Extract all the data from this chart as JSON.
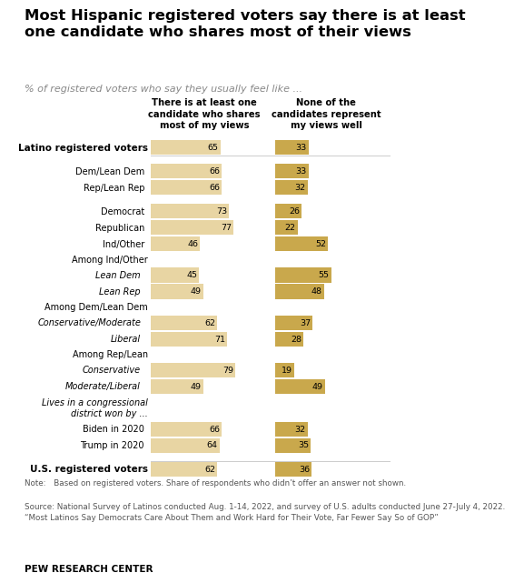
{
  "title": "Most Hispanic registered voters say there is at least\none candidate who shares most of their views",
  "subtitle": "% of registered voters who say they usually feel like ...",
  "col1_header": "There is at least one\ncandidate who shares\nmost of my views",
  "col2_header": "None of the\ncandidates represent\nmy views well",
  "rows": [
    {
      "label": "Latino registered voters",
      "v1": 65,
      "v2": 33,
      "bold": true,
      "italic": false,
      "indent": 0,
      "spacer": false,
      "header_only": false
    },
    {
      "label": "",
      "v1": null,
      "v2": null,
      "bold": false,
      "italic": false,
      "indent": 0,
      "spacer": true,
      "header_only": false
    },
    {
      "label": "Dem/Lean Dem",
      "v1": 66,
      "v2": 33,
      "bold": false,
      "italic": false,
      "indent": 1,
      "spacer": false,
      "header_only": false
    },
    {
      "label": "Rep/Lean Rep",
      "v1": 66,
      "v2": 32,
      "bold": false,
      "italic": false,
      "indent": 1,
      "spacer": false,
      "header_only": false
    },
    {
      "label": "",
      "v1": null,
      "v2": null,
      "bold": false,
      "italic": false,
      "indent": 0,
      "spacer": true,
      "header_only": false
    },
    {
      "label": "Democrat",
      "v1": 73,
      "v2": 26,
      "bold": false,
      "italic": false,
      "indent": 1,
      "spacer": false,
      "header_only": false
    },
    {
      "label": "Republican",
      "v1": 77,
      "v2": 22,
      "bold": false,
      "italic": false,
      "indent": 1,
      "spacer": false,
      "header_only": false
    },
    {
      "label": "Ind/Other",
      "v1": 46,
      "v2": 52,
      "bold": false,
      "italic": false,
      "indent": 1,
      "spacer": false,
      "header_only": false
    },
    {
      "label": "Among Ind/Other",
      "v1": null,
      "v2": null,
      "bold": false,
      "italic": false,
      "indent": 0,
      "spacer": false,
      "header_only": true
    },
    {
      "label": "Lean Dem",
      "v1": 45,
      "v2": 55,
      "bold": false,
      "italic": true,
      "indent": 2,
      "spacer": false,
      "header_only": false
    },
    {
      "label": "Lean Rep",
      "v1": 49,
      "v2": 48,
      "bold": false,
      "italic": true,
      "indent": 2,
      "spacer": false,
      "header_only": false
    },
    {
      "label": "Among Dem/Lean Dem",
      "v1": null,
      "v2": null,
      "bold": false,
      "italic": false,
      "indent": 0,
      "spacer": false,
      "header_only": true
    },
    {
      "label": "Conservative/Moderate",
      "v1": 62,
      "v2": 37,
      "bold": false,
      "italic": true,
      "indent": 2,
      "spacer": false,
      "header_only": false
    },
    {
      "label": "Liberal",
      "v1": 71,
      "v2": 28,
      "bold": false,
      "italic": true,
      "indent": 2,
      "spacer": false,
      "header_only": false
    },
    {
      "label": "Among Rep/Lean",
      "v1": null,
      "v2": null,
      "bold": false,
      "italic": false,
      "indent": 0,
      "spacer": false,
      "header_only": true
    },
    {
      "label": "Conservative",
      "v1": 79,
      "v2": 19,
      "bold": false,
      "italic": true,
      "indent": 2,
      "spacer": false,
      "header_only": false
    },
    {
      "label": "Moderate/Liberal",
      "v1": 49,
      "v2": 49,
      "bold": false,
      "italic": true,
      "indent": 2,
      "spacer": false,
      "header_only": false
    },
    {
      "label": "Lives in a congressional\ndistrict won by ...",
      "v1": null,
      "v2": null,
      "bold": false,
      "italic": true,
      "indent": 0,
      "spacer": false,
      "header_only": true
    },
    {
      "label": "Biden in 2020",
      "v1": 66,
      "v2": 32,
      "bold": false,
      "italic": false,
      "indent": 1,
      "spacer": false,
      "header_only": false
    },
    {
      "label": "Trump in 2020",
      "v1": 64,
      "v2": 35,
      "bold": false,
      "italic": false,
      "indent": 1,
      "spacer": false,
      "header_only": false
    },
    {
      "label": "",
      "v1": null,
      "v2": null,
      "bold": false,
      "italic": false,
      "indent": 0,
      "spacer": true,
      "header_only": false
    },
    {
      "label": "U.S. registered voters",
      "v1": 62,
      "v2": 36,
      "bold": true,
      "italic": false,
      "indent": 0,
      "spacer": false,
      "header_only": false
    }
  ],
  "bar_color_light": "#E8D5A3",
  "bar_color_dark": "#C9A84C",
  "note_text": "Note: Based on registered voters. Share of respondents who didn’t offer an answer not shown.",
  "source_text": "Source: National Survey of Latinos conducted Aug. 1-14, 2022, and survey of U.S. adults conducted June 27-July 4, 2022.\n“Most Latinos Say Democrats Care About Them and Work Hard for Their Vote, Far Fewer Say So of GOP”",
  "branding": "PEW RESEARCH CENTER",
  "bg_color": "#FFFFFF",
  "separator_color": "#CCCCCC",
  "text_color": "#000000",
  "note_color": "#555555"
}
